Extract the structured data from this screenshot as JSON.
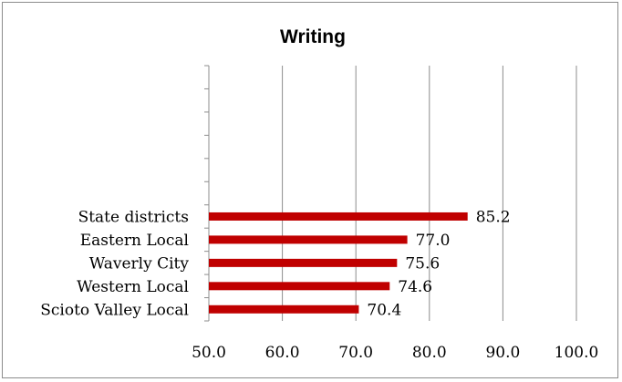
{
  "chart_data": {
    "type": "bar",
    "orientation": "horizontal",
    "title": "Writing",
    "xlabel": "",
    "ylabel": "",
    "categories": [
      "State districts",
      "Eastern Local",
      "Waverly City",
      "Western Local",
      "Scioto Valley Local"
    ],
    "values": [
      85.2,
      77.0,
      75.6,
      74.6,
      70.4
    ],
    "value_labels": [
      "85.2",
      "77.0",
      "75.6",
      "74.6",
      "70.4"
    ],
    "xlim": [
      50,
      100
    ],
    "x_ticks": [
      "50.0",
      "60.0",
      "70.0",
      "80.0",
      "90.0",
      "100.0"
    ],
    "grid": "vertical",
    "legend": "none",
    "bar_color": "#c00000",
    "gridline_color": "#8c8c8c"
  }
}
